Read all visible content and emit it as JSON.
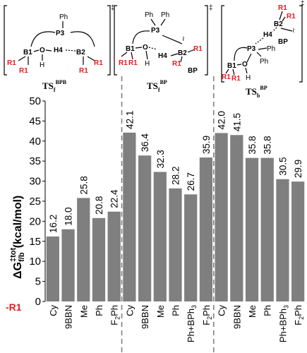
{
  "chart_data": {
    "type": "bar",
    "ylabel": {
      "main": "ΔG",
      "sup": "‡tot",
      "sub": "f/b",
      "unit": "(kcal/mol)"
    },
    "ylim": [
      0,
      50
    ],
    "yticks": [
      0,
      5,
      10,
      15,
      20,
      25,
      30,
      35,
      40,
      45,
      50
    ],
    "bar_color": "#7f7f7f",
    "divider_color": "#808080",
    "row_label": "-R1",
    "groups": [
      {
        "ts": {
          "base": "TS",
          "sub": "f",
          "sup": "BPB"
        },
        "categories": [
          "Cy",
          "9BBN",
          "Me",
          "Ph",
          "F2Ph"
        ],
        "values": [
          16.2,
          18.0,
          25.8,
          20.8,
          22.4
        ],
        "labels": [
          "16.2",
          "18.0",
          "25.8",
          "20.8",
          "22.4"
        ]
      },
      {
        "ts": {
          "base": "TS",
          "sub": "f",
          "sup": "BP"
        },
        "categories": [
          "Cy",
          "9BBN",
          "Me",
          "Ph",
          "Ph+BPh3",
          "F2Ph"
        ],
        "values": [
          42.1,
          36.4,
          32.3,
          28.2,
          26.7,
          35.9
        ],
        "labels": [
          "42.1",
          "36.4",
          "32.3",
          "28.2",
          "26.7",
          "35.9"
        ]
      },
      {
        "ts": {
          "base": "TS",
          "sub": "b",
          "sup": "BP"
        },
        "categories": [
          "Cy",
          "9BBN",
          "Me",
          "Ph",
          "Ph+BPh3",
          "F2Ph"
        ],
        "values": [
          42.0,
          41.5,
          35.8,
          35.8,
          30.5,
          29.9
        ],
        "labels": [
          "42.0",
          "41.5",
          "35.8",
          "35.8",
          "30.5",
          "29.9"
        ]
      }
    ]
  },
  "structures": {
    "dagger": "‡",
    "atoms": {
      "p3": "P3",
      "b1": "B1",
      "b2": "B2",
      "h4": "H4",
      "o": "O",
      "h": "H",
      "ph": "Ph",
      "r1": "R1",
      "bp": "BP"
    }
  }
}
